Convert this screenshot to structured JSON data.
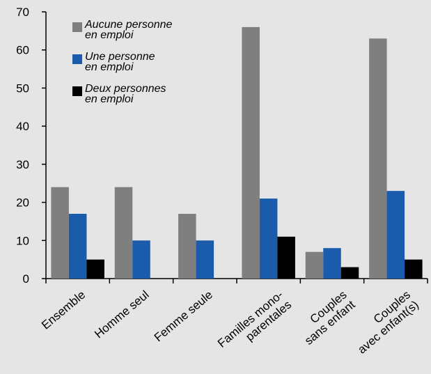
{
  "chart_data": {
    "type": "bar",
    "categories": [
      "Ensemble",
      "Homme seul",
      "Femme seule",
      "Familles mono-\nparentales",
      "Couples\nsans enfant",
      "Couples\navec enfant(s)"
    ],
    "series": [
      {
        "name": "Aucune personne\nen emploi",
        "color": "#7f7f7f",
        "values": [
          24,
          24,
          17,
          66,
          7,
          63
        ]
      },
      {
        "name": "Une personne\nen emploi",
        "color": "#1a5cab",
        "values": [
          17,
          10,
          10,
          21,
          8,
          23
        ]
      },
      {
        "name": "Deux personnes\nen emploi",
        "color": "#000000",
        "values": [
          5,
          null,
          null,
          11,
          3,
          5
        ]
      }
    ],
    "ylim": [
      0,
      70
    ],
    "yticks": [
      0,
      10,
      20,
      30,
      40,
      50,
      60,
      70
    ],
    "legend": "upper left"
  }
}
